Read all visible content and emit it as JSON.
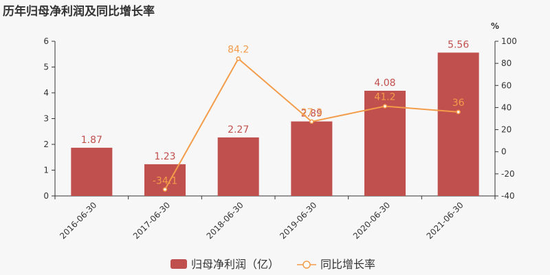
{
  "title": "历年归母净利润及同比增长率",
  "chart_data": {
    "type": "bar",
    "categories": [
      "2016-06-30",
      "2017-06-30",
      "2018-06-30",
      "2019-06-30",
      "2020-06-30",
      "2021-06-30"
    ],
    "series": [
      {
        "name": "归母净利润（亿）",
        "type": "bar",
        "axis": "left",
        "color": "#c0504d",
        "values": [
          1.87,
          1.23,
          2.27,
          2.89,
          4.08,
          5.56
        ],
        "labels": [
          "1.87",
          "1.23",
          "2.27",
          "2.89",
          "4.08",
          "5.56"
        ]
      },
      {
        "name": "同比增长率",
        "type": "line",
        "axis": "right",
        "color": "#f39c4a",
        "values": [
          null,
          -34.1,
          84.2,
          27.3,
          41.2,
          36
        ],
        "labels": [
          "",
          "-34.1",
          "84.2",
          "27.3",
          "41.2",
          "36"
        ]
      }
    ],
    "left_axis": {
      "min": 0,
      "max": 6,
      "ticks": [
        "0",
        "1",
        "2",
        "3",
        "4",
        "5",
        "6"
      ]
    },
    "right_axis": {
      "min": -40,
      "max": 100,
      "unit": "%",
      "ticks": [
        "-40",
        "-20",
        "0",
        "20",
        "40",
        "60",
        "80",
        "100"
      ]
    },
    "legend_position": "bottom"
  }
}
